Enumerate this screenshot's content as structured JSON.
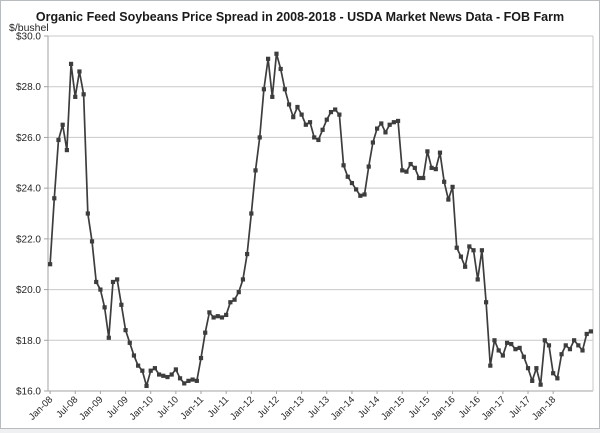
{
  "chart_data": {
    "type": "line",
    "title": "Organic Feed Soybeans Price Spread in 2008-2018 - USDA Market News Data - FOB Farm",
    "y_axis_title": "$/bushel",
    "y_tick_labels": [
      "$30.0",
      "$28.0",
      "$26.0",
      "$24.0",
      "$22.0",
      "$20.0",
      "$18.0",
      "$16.0"
    ],
    "ylim": [
      16,
      30
    ],
    "y_step": 2,
    "x_tick_labels": [
      "Jan-08",
      "Jul-08",
      "Jan-09",
      "Jul-09",
      "Jan-10",
      "Jul-10",
      "Jan-11",
      "Jul-11",
      "Jan-12",
      "Jul-12",
      "Jan-13",
      "Jul-13",
      "Jan-14",
      "Jul-14",
      "Jan-15",
      "Jul-15",
      "Jan-16",
      "Jul-16",
      "Jan-17",
      "Jul-17",
      "Jan-18"
    ],
    "x_tick_every_n_points": 6,
    "grid": "horizontal",
    "legend": "none",
    "marker": "square",
    "series": [
      {
        "name": "Organic feed soybeans price, $/bushel, monthly from Jan-08",
        "values": [
          21.0,
          23.6,
          25.9,
          26.5,
          25.5,
          28.9,
          27.6,
          28.6,
          27.7,
          23.0,
          21.9,
          20.3,
          20.0,
          19.3,
          18.1,
          20.3,
          20.4,
          19.4,
          18.4,
          17.9,
          17.4,
          17.0,
          16.8,
          16.2,
          16.8,
          16.9,
          16.65,
          16.6,
          16.55,
          16.65,
          16.85,
          16.5,
          16.3,
          16.4,
          16.45,
          16.4,
          17.3,
          18.3,
          19.1,
          18.9,
          18.95,
          18.9,
          19.0,
          19.5,
          19.6,
          19.9,
          20.4,
          21.4,
          23.0,
          24.7,
          26.0,
          27.9,
          29.1,
          27.6,
          29.3,
          28.7,
          27.9,
          27.3,
          26.8,
          27.2,
          26.9,
          26.5,
          26.6,
          26.0,
          25.9,
          26.3,
          26.7,
          27.0,
          27.1,
          26.9,
          24.9,
          24.45,
          24.2,
          23.95,
          23.7,
          23.75,
          24.85,
          25.8,
          26.35,
          26.55,
          26.2,
          26.5,
          26.6,
          26.65,
          24.7,
          24.65,
          24.95,
          24.8,
          24.4,
          24.4,
          25.45,
          24.8,
          24.75,
          25.4,
          24.25,
          23.55,
          24.05,
          21.65,
          21.3,
          20.9,
          21.7,
          21.55,
          20.4,
          21.55,
          19.5,
          17.0,
          18.0,
          17.6,
          17.4,
          17.9,
          17.85,
          17.65,
          17.7,
          17.35,
          16.9,
          16.4,
          16.9,
          16.25,
          18.0,
          17.8,
          16.7,
          16.5,
          17.45,
          17.8,
          17.65,
          18.0,
          17.8,
          17.6,
          18.25,
          18.35
        ]
      }
    ],
    "colors": {
      "series": "#3d3d3d",
      "grid": "#c9c9c9",
      "axis": "#a3a3a3",
      "tick_text": "#262626",
      "title_text": "#1a1a1a",
      "background": "#ffffff"
    }
  }
}
